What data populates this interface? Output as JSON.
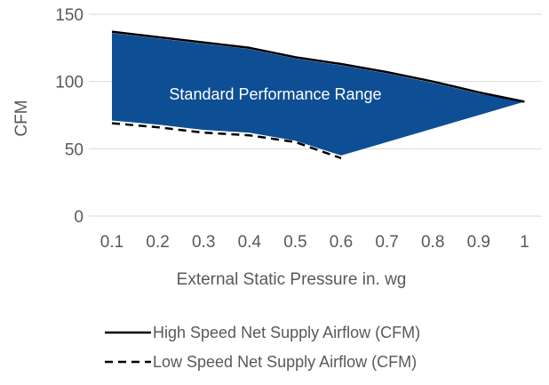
{
  "chart_data": {
    "type": "line",
    "title": "",
    "xlabel": "External Static Pressure in. wg",
    "ylabel": "CFM",
    "x": [
      0.1,
      0.2,
      0.3,
      0.4,
      0.5,
      0.6,
      0.7,
      0.8,
      0.9,
      1
    ],
    "x_tick_labels": [
      "0.1",
      "0.2",
      "0.3",
      "0.4",
      "0.5",
      "0.6",
      "0.7",
      "0.8",
      "0.9",
      "1"
    ],
    "ylim": [
      0,
      150
    ],
    "y_ticks": [
      0,
      50,
      100,
      150
    ],
    "y_tick_labels": [
      "0",
      "50",
      "100",
      "150"
    ],
    "grid": "horizontal",
    "legend_position": "bottom",
    "series": [
      {
        "name": "High Speed Net Supply Airflow (CFM)",
        "style": "solid",
        "color": "#000000",
        "points": [
          [
            0.1,
            137
          ],
          [
            0.2,
            133
          ],
          [
            0.3,
            129
          ],
          [
            0.4,
            125
          ],
          [
            0.5,
            118
          ],
          [
            0.6,
            113
          ],
          [
            0.7,
            107
          ],
          [
            0.8,
            100
          ],
          [
            0.9,
            92
          ],
          [
            1,
            85
          ]
        ]
      },
      {
        "name": "Low Speed Net Supply Airflow (CFM)",
        "style": "dashed",
        "color": "#000000",
        "points": [
          [
            0.1,
            69
          ],
          [
            0.2,
            66
          ],
          [
            0.3,
            62
          ],
          [
            0.4,
            60
          ],
          [
            0.5,
            55
          ],
          [
            0.6,
            43
          ]
        ]
      }
    ],
    "region": {
      "label": "Standard Performance Range",
      "color": "#0e4e94",
      "label_color": "#ffffff",
      "polygon": [
        [
          0.1,
          136
        ],
        [
          0.2,
          132
        ],
        [
          0.3,
          128
        ],
        [
          0.4,
          124
        ],
        [
          0.5,
          117
        ],
        [
          0.6,
          112
        ],
        [
          0.7,
          106
        ],
        [
          0.8,
          99
        ],
        [
          0.9,
          91
        ],
        [
          1,
          85
        ],
        [
          0.6,
          45
        ],
        [
          0.5,
          56
        ],
        [
          0.4,
          62
        ],
        [
          0.3,
          64
        ],
        [
          0.2,
          68
        ],
        [
          0.1,
          71
        ]
      ]
    }
  }
}
